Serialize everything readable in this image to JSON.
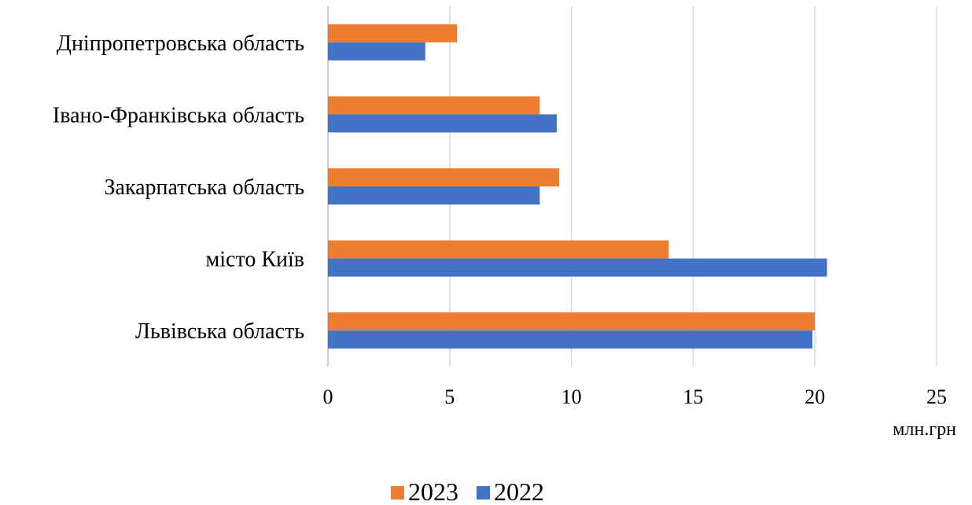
{
  "chart_data": {
    "type": "bar",
    "orientation": "horizontal",
    "categories": [
      "Дніпропетровська область",
      "Івано-Франківська область",
      "Закарпатська область",
      "місто Київ",
      "Львівська область"
    ],
    "series": [
      {
        "name": "2023",
        "color": "#ED7D31",
        "values": [
          5.3,
          8.7,
          9.5,
          14.0,
          20.0
        ]
      },
      {
        "name": "2022",
        "color": "#4472C4",
        "values": [
          4.0,
          9.4,
          8.7,
          20.5,
          19.9
        ]
      }
    ],
    "xlabel": "млн.грн",
    "xlim": [
      0,
      25
    ],
    "xticks": [
      "0",
      "5",
      "10",
      "15",
      "20",
      "25"
    ],
    "grid": "vertical",
    "legend_position": "bottom",
    "gridline_color": "#D9D9D9"
  }
}
